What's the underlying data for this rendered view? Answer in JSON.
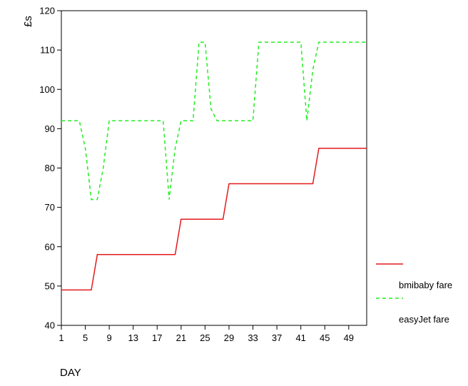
{
  "chart_data": {
    "type": "line",
    "xlabel": "DAY",
    "ylabel": "£s",
    "xlim": [
      1,
      52
    ],
    "ylim": [
      40,
      120
    ],
    "x_ticks": [
      1,
      5,
      9,
      13,
      17,
      21,
      25,
      29,
      33,
      37,
      41,
      45,
      49
    ],
    "y_ticks": [
      40,
      50,
      60,
      70,
      80,
      90,
      100,
      110,
      120
    ],
    "legend_position": "right",
    "series": [
      {
        "name": "bmibaby fare",
        "color": "#e41a1c",
        "style": "solid",
        "x": [
          1,
          5,
          6,
          7,
          20,
          21,
          28,
          29,
          43,
          44,
          52
        ],
        "y": [
          49,
          49,
          49,
          58,
          58,
          67,
          67,
          76,
          76,
          85,
          85
        ]
      },
      {
        "name": "easyJet fare",
        "color": "#22ee22",
        "style": "dashed",
        "x": [
          1,
          4,
          5,
          6,
          7,
          8,
          9,
          18,
          19,
          20,
          21,
          23,
          24,
          25,
          26,
          27,
          33,
          34,
          35,
          41,
          42,
          43,
          44,
          52
        ],
        "y": [
          92,
          92,
          85,
          72,
          72,
          80,
          92,
          92,
          72,
          85,
          92,
          92,
          112,
          112,
          95,
          92,
          92,
          112,
          112,
          112,
          92,
          105,
          112,
          112
        ]
      }
    ]
  }
}
